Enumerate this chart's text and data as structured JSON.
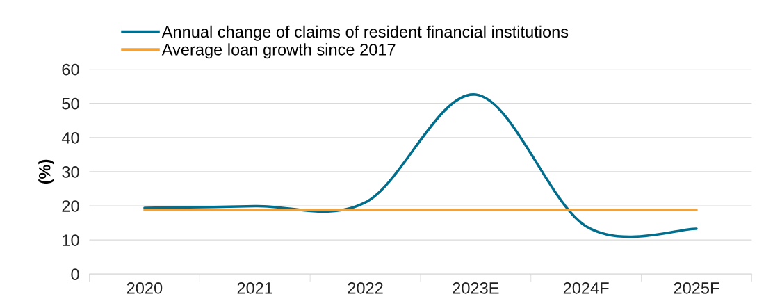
{
  "chart_data": {
    "type": "line",
    "ylabel": "(%)",
    "categories": [
      "2020",
      "2021",
      "2022",
      "2023E",
      "2024F",
      "2025F"
    ],
    "series": [
      {
        "name": "Annual change of claims of resident financial institutions",
        "color": "#006e8c",
        "values": [
          19.4,
          19.9,
          21,
          52.6,
          14,
          13.3
        ]
      },
      {
        "name": "Average loan growth since 2017",
        "color": "#f0a23c",
        "values": [
          18.8,
          18.8,
          18.8,
          18.8,
          18.8,
          18.8
        ]
      }
    ],
    "ylim": [
      0,
      60
    ],
    "yticks": [
      0,
      10,
      20,
      30,
      40,
      50,
      60
    ],
    "grid": "y",
    "legend": "top",
    "marker": "none",
    "line_style": "solid"
  }
}
